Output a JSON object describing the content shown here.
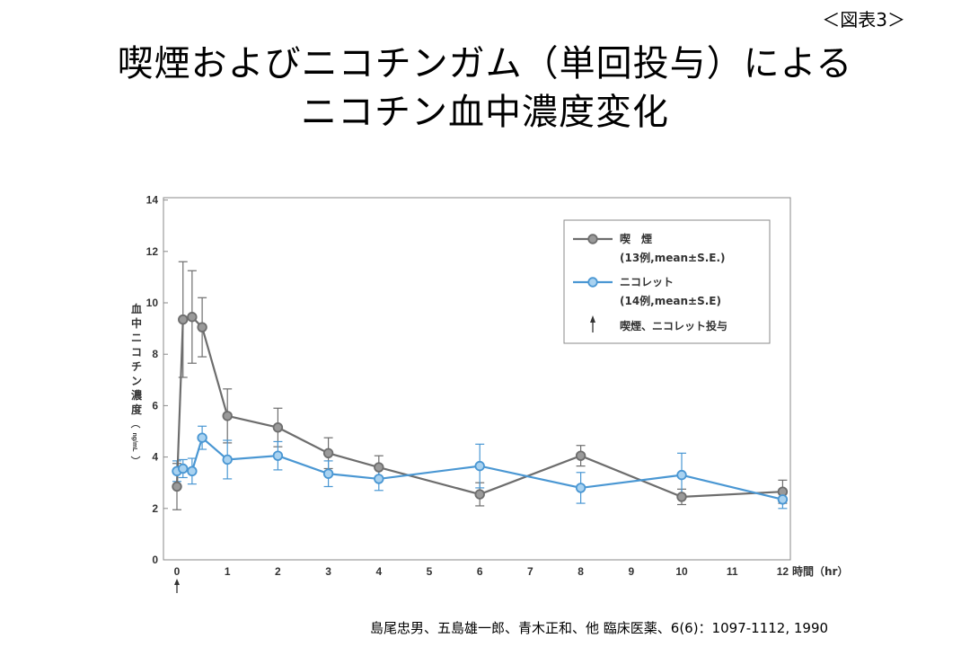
{
  "figure_label": "＜図表3＞",
  "title_line1": "喫煙およびニコチンガム（単回投与）による",
  "title_line2": "ニコチン血中濃度変化",
  "citation": "島尾忠男、五島雄一郎、青木正和、他 臨床医薬、6(6)：1097-1112, 1990",
  "chart_data": {
    "type": "line",
    "ylabel": "血中ニコチン濃度",
    "ylabel_unit": "ng/mL",
    "xlabel": "時間（hr）",
    "xlim": [
      0,
      12
    ],
    "ylim": [
      0,
      14
    ],
    "x_ticks": [
      0,
      1,
      2,
      3,
      4,
      5,
      6,
      7,
      8,
      9,
      10,
      11,
      12
    ],
    "y_ticks": [
      0,
      2,
      4,
      6,
      8,
      10,
      12,
      14
    ],
    "grid": false,
    "legend_position": "top-right",
    "series": [
      {
        "name": "喫　煙",
        "sub": "(13例,mean±S.E.)",
        "color": "#6d6d6d",
        "marker_fill": "#9a9a9a",
        "points": [
          {
            "x": 0,
            "y": 2.85,
            "err": 0.9
          },
          {
            "x": 0.12,
            "y": 9.35,
            "err": 2.25
          },
          {
            "x": 0.3,
            "y": 9.45,
            "err": 1.8
          },
          {
            "x": 0.5,
            "y": 9.05,
            "err": 1.15
          },
          {
            "x": 1,
            "y": 5.6,
            "err": 1.05
          },
          {
            "x": 2,
            "y": 5.15,
            "err": 0.75
          },
          {
            "x": 3,
            "y": 4.15,
            "err": 0.6
          },
          {
            "x": 4,
            "y": 3.6,
            "err": 0.45
          },
          {
            "x": 6,
            "y": 2.55,
            "err": 0.45
          },
          {
            "x": 8,
            "y": 4.05,
            "err": 0.4
          },
          {
            "x": 10,
            "y": 2.45,
            "err": 0.3
          },
          {
            "x": 12,
            "y": 2.65,
            "err": 0.45
          }
        ]
      },
      {
        "name": "ニコレット",
        "sub": "(14例,mean±S.E)",
        "color": "#4a97d3",
        "marker_fill": "#a9d2f0",
        "points": [
          {
            "x": 0,
            "y": 3.45,
            "err": 0.4
          },
          {
            "x": 0.12,
            "y": 3.55,
            "err": 0.35
          },
          {
            "x": 0.3,
            "y": 3.45,
            "err": 0.5
          },
          {
            "x": 0.5,
            "y": 4.75,
            "err": 0.45
          },
          {
            "x": 1,
            "y": 3.9,
            "err": 0.75
          },
          {
            "x": 2,
            "y": 4.05,
            "err": 0.55
          },
          {
            "x": 3,
            "y": 3.35,
            "err": 0.5
          },
          {
            "x": 4,
            "y": 3.15,
            "err": 0.45
          },
          {
            "x": 6,
            "y": 3.65,
            "err": 0.85
          },
          {
            "x": 8,
            "y": 2.8,
            "err": 0.6
          },
          {
            "x": 10,
            "y": 3.3,
            "err": 0.85
          },
          {
            "x": 12,
            "y": 2.35,
            "err": 0.35
          }
        ]
      }
    ],
    "legend_note": "喫煙、ニコレット投与",
    "arrow_at_x": 0
  }
}
